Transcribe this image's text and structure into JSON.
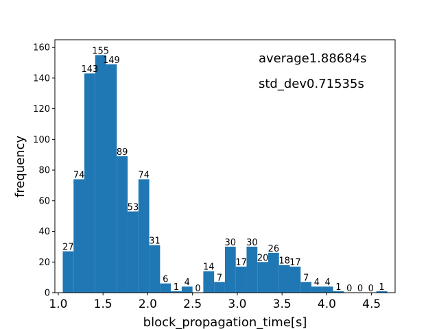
{
  "chart_data": {
    "type": "bar",
    "title": "",
    "xlabel": "block_propagation_time[s]",
    "ylabel": "frequency",
    "bin_start": 1.05,
    "bin_width": 0.1208,
    "values": [
      27,
      74,
      143,
      155,
      149,
      89,
      53,
      74,
      31,
      6,
      1,
      4,
      0,
      14,
      7,
      30,
      17,
      30,
      20,
      26,
      18,
      17,
      7,
      4,
      4,
      1,
      0,
      0,
      0,
      1
    ],
    "bar_labels": [
      "27",
      "74",
      "143",
      "155",
      "149",
      "89",
      "53",
      "74",
      "31",
      "6",
      "1",
      "4",
      "0",
      "14",
      "7",
      "30",
      "17",
      "30",
      "20",
      "26",
      "18",
      "17",
      "7",
      "4",
      "4",
      "1",
      "0",
      "0",
      "0",
      "1"
    ],
    "xlim": [
      0.962,
      4.763
    ],
    "ylim": [
      0,
      165
    ],
    "xticks": [
      1.0,
      1.5,
      2.0,
      2.5,
      3.0,
      3.5,
      4.0,
      4.5
    ],
    "xtick_labels": [
      "1.0",
      "1.5",
      "2.0",
      "2.5",
      "3.0",
      "3.5",
      "4.0",
      "4.5"
    ],
    "yticks": [
      0,
      20,
      40,
      60,
      80,
      100,
      120,
      140,
      160
    ],
    "ytick_labels": [
      "0",
      "20",
      "40",
      "60",
      "80",
      "100",
      "120",
      "140",
      "160"
    ],
    "bar_color": "#1f77b4",
    "grid": false,
    "legend": "none",
    "annotations": [
      "average1.88684s",
      "std_dev0.71535s"
    ]
  }
}
